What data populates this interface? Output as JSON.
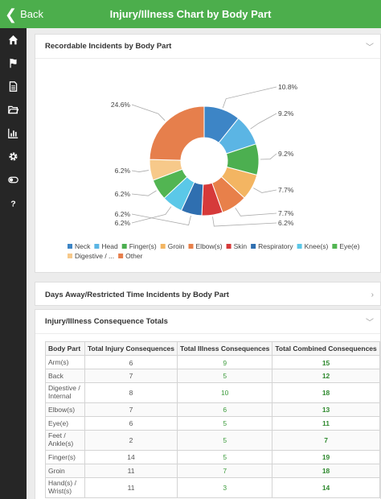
{
  "header": {
    "back_label": "Back",
    "title": "Injury/Illness Chart by Body Part"
  },
  "sidebar": {
    "icons": [
      "home-icon",
      "flag-icon",
      "document-icon",
      "folder-icon",
      "bar-chart-icon",
      "gear-icon",
      "toggle-icon",
      "help-icon"
    ]
  },
  "cards": {
    "recordable": {
      "title": "Recordable Incidents by Body Part"
    },
    "days_away": {
      "title": "Days Away/Restricted Time Incidents by Body Part"
    },
    "consequences": {
      "title": "Injury/Illness Consequence Totals"
    }
  },
  "chart_data": {
    "type": "pie",
    "title": "",
    "categories": [
      "Neck",
      "Head",
      "Finger(s)",
      "Groin",
      "Elbow(s)",
      "Skin",
      "Respiratory",
      "Knee(s)",
      "Eye(e)",
      "Digestive / ...",
      "Other"
    ],
    "values": [
      10.8,
      9.2,
      9.2,
      7.7,
      7.7,
      6.2,
      6.2,
      6.2,
      6.2,
      6.2,
      24.6
    ],
    "value_labels": [
      "10.8%",
      "9.2%",
      "9.2%",
      "7.7%",
      "7.7%",
      "6.2%",
      "6.2%",
      "6.2%",
      "6.2%",
      "6.2%",
      "24.6%"
    ],
    "colors": [
      "#3d85c6",
      "#5bb5e4",
      "#4caf50",
      "#f3b562",
      "#e8804a",
      "#d63a3a",
      "#2f6fb0",
      "#5bc8e8",
      "#52b552",
      "#f7c98a",
      "#e67f4c"
    ],
    "legend_position": "bottom",
    "style": "donut"
  },
  "table": {
    "headers": [
      "Body Part",
      "Total Injury Consequences",
      "Total Illness Consequences",
      "Total Combined Consequences"
    ],
    "rows": [
      {
        "name": "Arm(s)",
        "injury": "6",
        "illness": "9",
        "combined": "15"
      },
      {
        "name": "Back",
        "injury": "7",
        "illness": "5",
        "combined": "12"
      },
      {
        "name": "Digestive / Internal",
        "injury": "8",
        "illness": "10",
        "combined": "18"
      },
      {
        "name": "Elbow(s)",
        "injury": "7",
        "illness": "6",
        "combined": "13"
      },
      {
        "name": "Eye(e)",
        "injury": "6",
        "illness": "5",
        "combined": "11"
      },
      {
        "name": "Feet / Ankle(s)",
        "injury": "2",
        "illness": "5",
        "combined": "7"
      },
      {
        "name": "Finger(s)",
        "injury": "14",
        "illness": "5",
        "combined": "19"
      },
      {
        "name": "Groin",
        "injury": "11",
        "illness": "7",
        "combined": "18"
      },
      {
        "name": "Hand(s) / Wrist(s)",
        "injury": "11",
        "illness": "3",
        "combined": "14"
      }
    ]
  }
}
